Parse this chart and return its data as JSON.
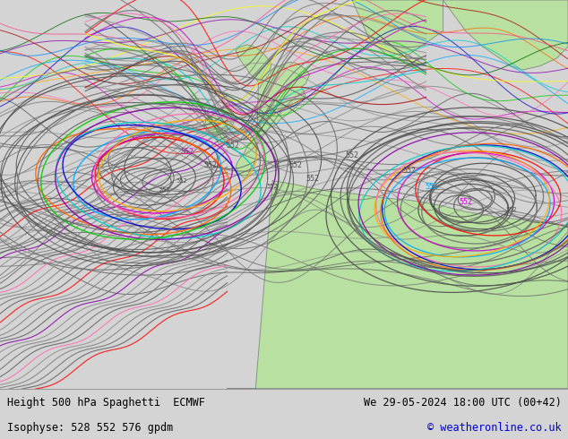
{
  "title_left": "Height 500 hPa Spaghetti  ECMWF",
  "title_right": "We 29-05-2024 18:00 UTC (00+42)",
  "subtitle_left": "Isophyse: 528 552 576 gpdm",
  "subtitle_right": "© weatheronline.co.uk",
  "bg_color": "#d4d4d4",
  "land_color": "#b8e0a0",
  "sea_color": "#d4d4d4",
  "border_color": "#888888",
  "bottom_bg": "#ffffff",
  "figsize": [
    6.34,
    4.9
  ],
  "dpi": 100,
  "contour_colors_gray": [
    "#505050",
    "#606060",
    "#707070",
    "#808080",
    "#909090"
  ],
  "contour_colors_bright": [
    "#ff0000",
    "#cc00cc",
    "#00aaff",
    "#ffaa00",
    "#00cc00",
    "#ff69b4",
    "#0000cc",
    "#ff6600",
    "#00cccc",
    "#ffff00",
    "#8800aa",
    "#006600",
    "#aa0000",
    "#0088ff",
    "#ff4488"
  ]
}
